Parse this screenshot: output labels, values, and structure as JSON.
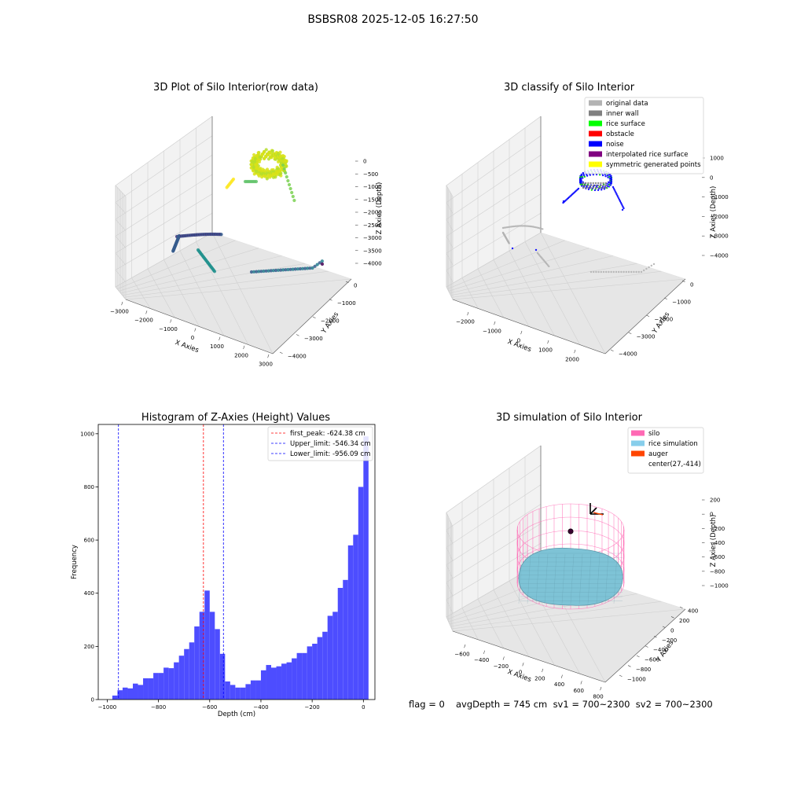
{
  "suptitle": "BSBSR08 2025-12-05 16:27:50",
  "footer": {
    "flag": "flag = 0",
    "stats": "avgDepth = 745 cm  sv1 = 700~2300  sv2 = 700~2300"
  },
  "chart_data": [
    {
      "type": "scatter",
      "title": "3D Plot of Silo Interior(row data)",
      "xlabel": "X Axies",
      "ylabel": "Y Axies",
      "zlabel": "Z Axies (Depth)",
      "x_ticks": [
        "−3000",
        "−2000",
        "−1000",
        "0",
        "1000",
        "2000",
        "3000"
      ],
      "y_ticks": [
        "0",
        "−1000",
        "−2000",
        "−3000",
        "−4000"
      ],
      "z_ticks": [
        "0",
        "−500",
        "−1000",
        "−1500",
        "−2000",
        "−2500",
        "−3000",
        "−3500",
        "−4000"
      ],
      "xlim": [
        -3000,
        3000
      ],
      "ylim": [
        -4500,
        500
      ],
      "zlim": [
        -4200,
        300
      ],
      "colormap": "viridis (by depth)"
    },
    {
      "type": "scatter",
      "title": "3D classify of Silo Interior",
      "xlabel": "X Axies",
      "ylabel": "Y Axies",
      "zlabel": "Z Axies (Depth)",
      "x_ticks": [
        "−2000",
        "−1000",
        "0",
        "1000",
        "2000"
      ],
      "y_ticks": [
        "0",
        "−1000",
        "−2000",
        "−3000",
        "−4000"
      ],
      "z_ticks": [
        "1000",
        "0",
        "−1000",
        "−2000",
        "−3000",
        "−4000"
      ],
      "legend_position": "top-right",
      "legend": [
        {
          "label": "original data",
          "color": "#b3b3b3"
        },
        {
          "label": "inner wall",
          "color": "#808080"
        },
        {
          "label": "rice surface",
          "color": "#00ff00"
        },
        {
          "label": "obstacle",
          "color": "#ff0000"
        },
        {
          "label": "noise",
          "color": "#0000ff"
        },
        {
          "label": "interpolated rice surface",
          "color": "#800080"
        },
        {
          "label": "symmetric generated points",
          "color": "#ffff00"
        }
      ]
    },
    {
      "type": "bar",
      "title": "Histogram of Z-Axies (Height) Values",
      "xlabel": "Depth (cm)",
      "ylabel": "Frequency",
      "xlim": [
        -1035,
        45
      ],
      "ylim": [
        0,
        1035
      ],
      "x_ticks": [
        "−1000",
        "−800",
        "−600",
        "−400",
        "−200",
        "0"
      ],
      "x_tick_values": [
        -1000,
        -800,
        -600,
        -400,
        -200,
        0
      ],
      "y_ticks": [
        "0",
        "200",
        "400",
        "600",
        "800",
        "1000"
      ],
      "y_tick_values": [
        0,
        200,
        400,
        600,
        800,
        1000
      ],
      "bar_color": "#4d4dff",
      "bin_start": -980,
      "bin_width": 20,
      "values": [
        15,
        35,
        45,
        42,
        60,
        55,
        80,
        80,
        100,
        100,
        120,
        118,
        140,
        165,
        190,
        215,
        275,
        330,
        410,
        330,
        265,
        172,
        68,
        55,
        45,
        45,
        58,
        72,
        72,
        110,
        130,
        120,
        125,
        135,
        140,
        155,
        175,
        175,
        200,
        210,
        235,
        255,
        315,
        330,
        420,
        450,
        580,
        620,
        800,
        990
      ],
      "vlines": [
        {
          "label": "first_peak: -624.38 cm",
          "x": -624.38,
          "color": "#ff0000"
        },
        {
          "label": "Upper_limit: -546.34 cm",
          "x": -546.34,
          "color": "#0000ff"
        },
        {
          "label": "Lower_limit: -956.09 cm",
          "x": -956.09,
          "color": "#0000ff"
        }
      ],
      "legend_position": "top-right"
    },
    {
      "type": "surface",
      "title": "3D simulation of Silo Interior",
      "xlabel": "X Axies",
      "ylabel": "Y Axies",
      "zlabel": "Z Axies (Depth)",
      "x_ticks": [
        "−600",
        "−400",
        "−200",
        "0",
        "200",
        "400",
        "600",
        "800"
      ],
      "y_ticks": [
        "400",
        "200",
        "0",
        "−200",
        "−400",
        "−600",
        "−800",
        "−1000"
      ],
      "z_ticks": [
        "200",
        "0",
        "−200",
        "−400",
        "−600",
        "−800",
        "−1000"
      ],
      "legend_position": "top-right",
      "legend": [
        {
          "label": "silo",
          "color": "#ff69b4"
        },
        {
          "label": "rice simulation",
          "color": "#87ceeb"
        },
        {
          "label": "auger",
          "color": "#ff4500"
        },
        {
          "label": "center(27,-414)",
          "color": ""
        }
      ]
    }
  ]
}
